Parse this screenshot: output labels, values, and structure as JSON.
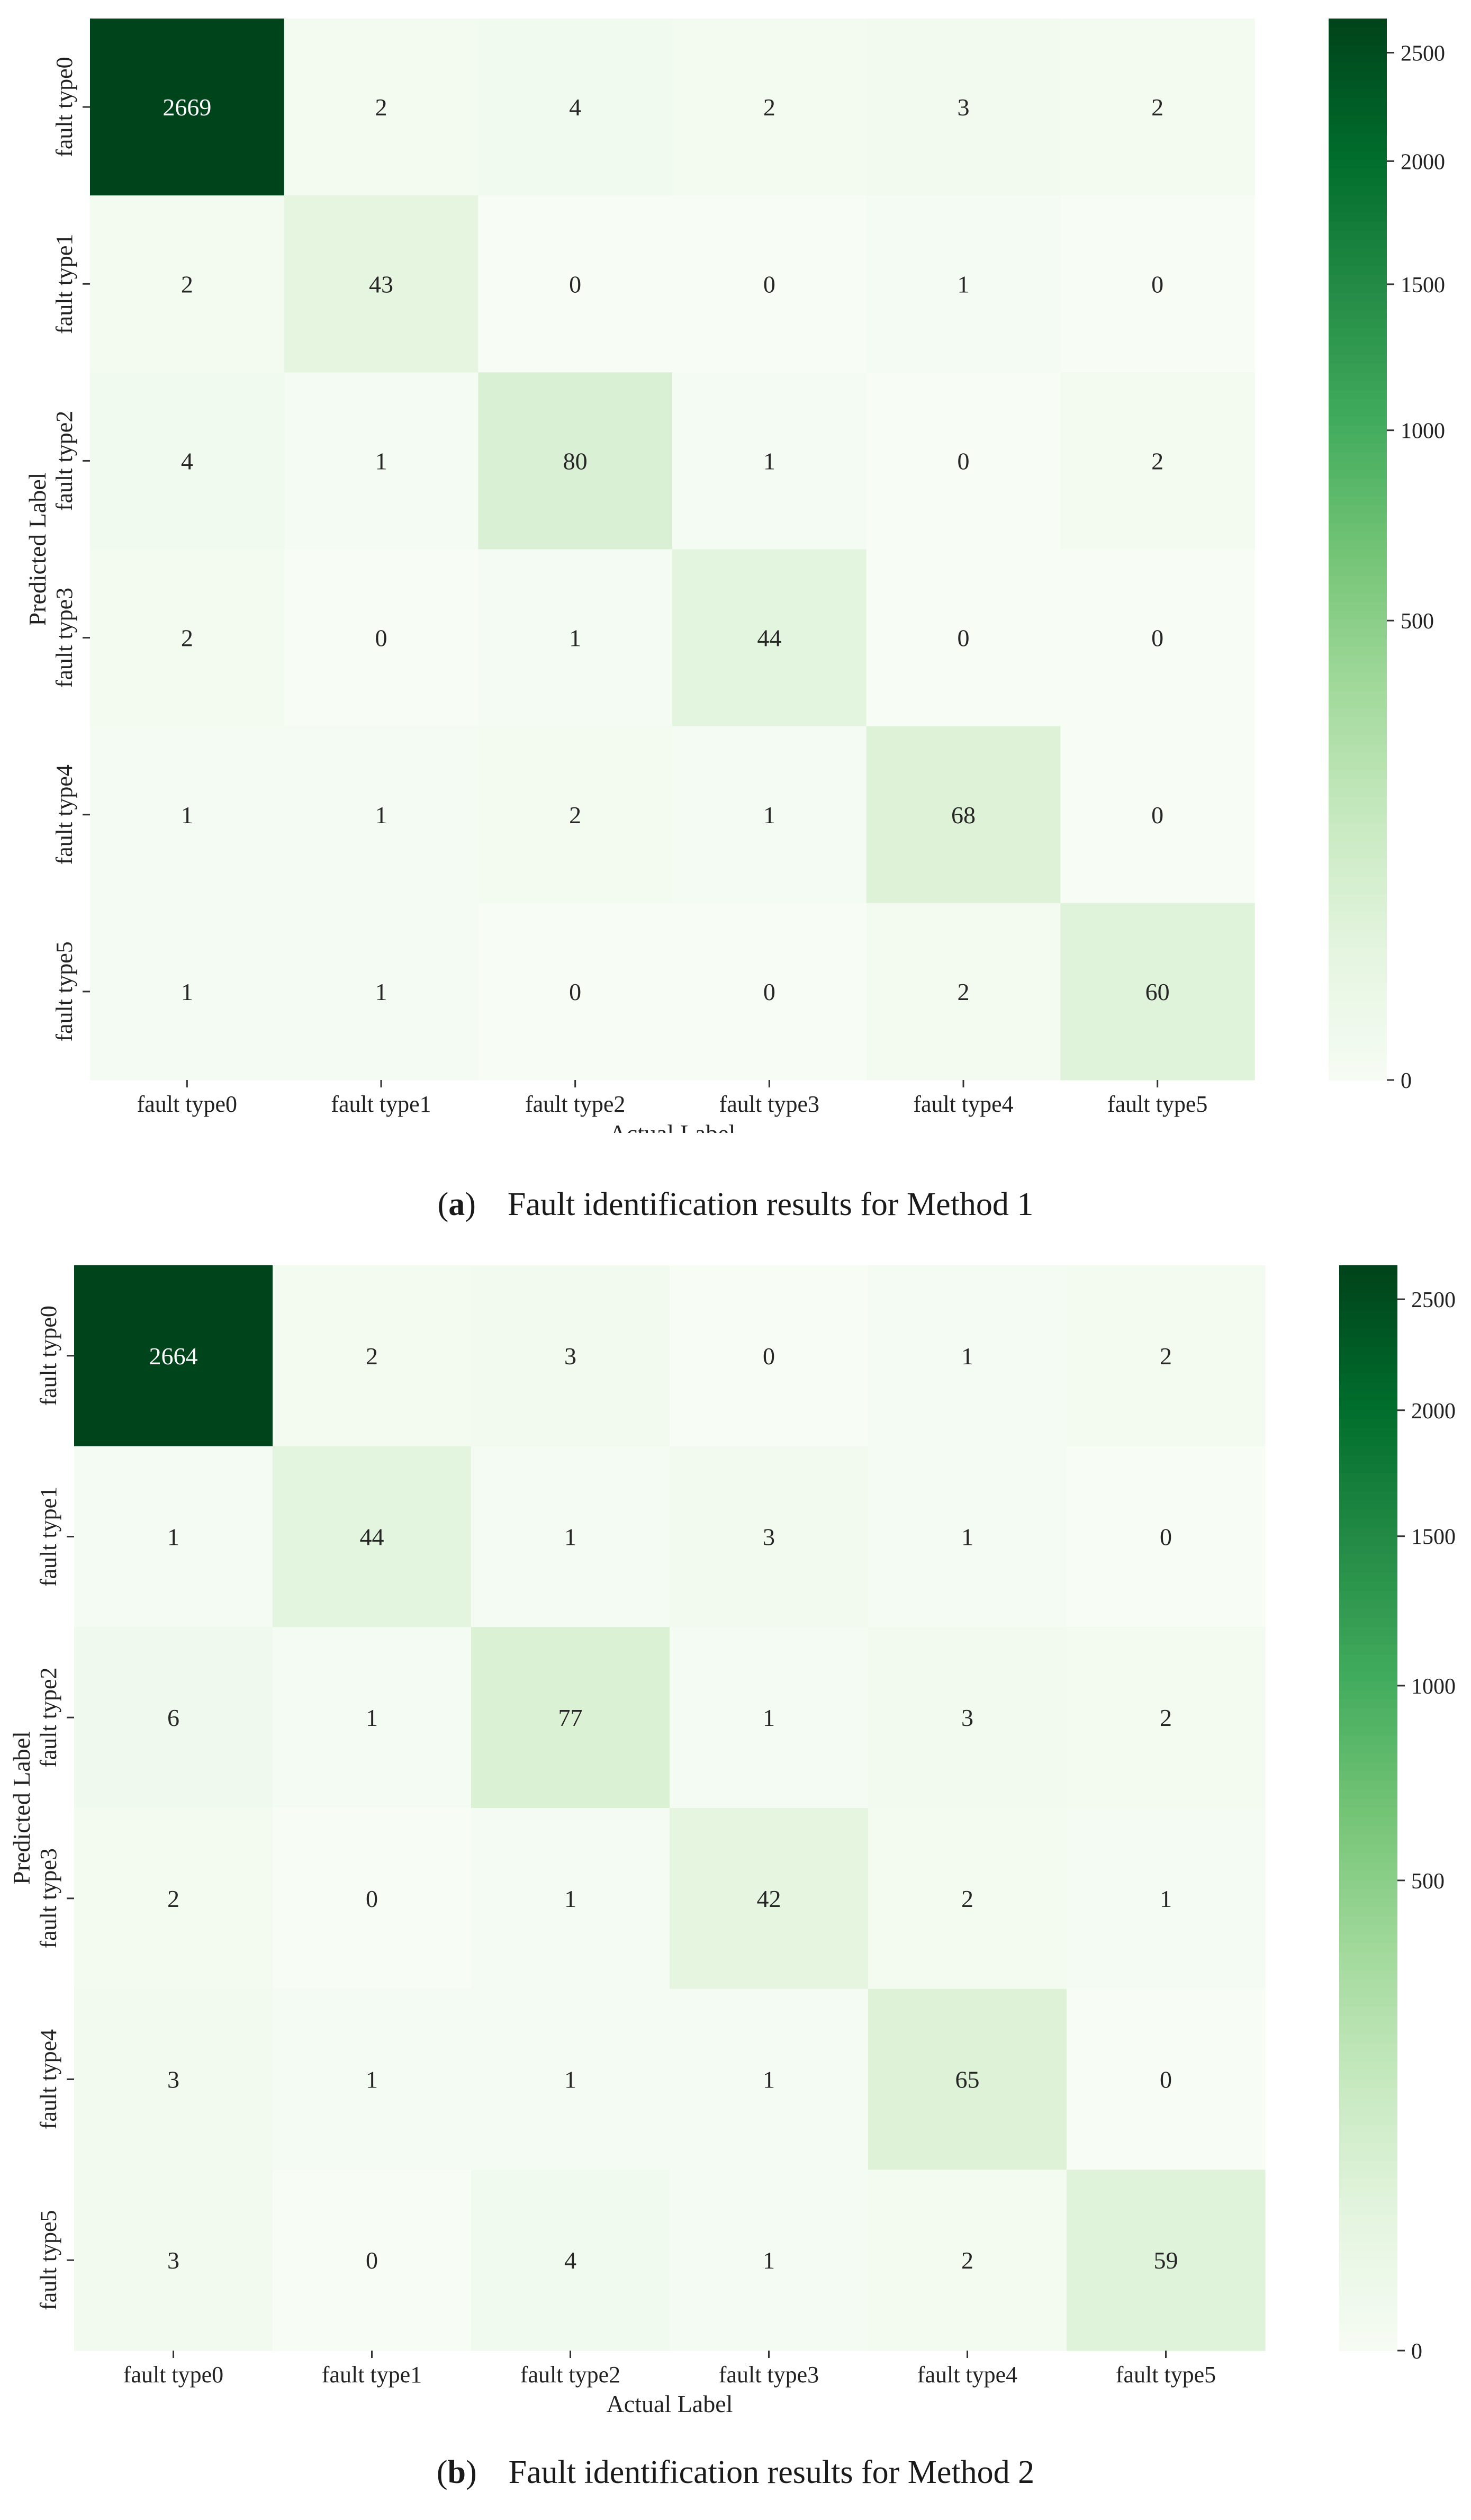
{
  "colorbar_ticks": [
    0,
    500,
    1000,
    1500,
    2000,
    2500
  ],
  "colormap": [
    "#f7fcf5",
    "#e5f5e0",
    "#c7e9c0",
    "#a1d99b",
    "#74c476",
    "#41ab5d",
    "#238b45",
    "#006d2c",
    "#00441b"
  ],
  "chart_data": [
    {
      "type": "heatmap",
      "panel": "a",
      "caption_label": "a",
      "caption_text": "Fault identification results for Method 1",
      "xlabel": "Actual Label",
      "ylabel": "Predicted Label",
      "x_categories": [
        "fault type0",
        "fault type1",
        "fault type2",
        "fault type3",
        "fault type4",
        "fault type5"
      ],
      "y_categories": [
        "fault type0",
        "fault type1",
        "fault type2",
        "fault type3",
        "fault type4",
        "fault type5"
      ],
      "values": [
        [
          2669,
          2,
          4,
          2,
          3,
          2
        ],
        [
          2,
          43,
          0,
          0,
          1,
          0
        ],
        [
          4,
          1,
          80,
          1,
          0,
          2
        ],
        [
          2,
          0,
          1,
          44,
          0,
          0
        ],
        [
          1,
          1,
          2,
          1,
          68,
          0
        ],
        [
          1,
          1,
          0,
          0,
          2,
          60
        ]
      ],
      "colorbar": {
        "min": 0,
        "max": 2669,
        "ticks": [
          0,
          500,
          1000,
          1500,
          2000,
          2500
        ]
      }
    },
    {
      "type": "heatmap",
      "panel": "b",
      "caption_label": "b",
      "caption_text": "Fault identification results for Method 2",
      "xlabel": "Actual Label",
      "ylabel": "Predicted Label",
      "x_categories": [
        "fault type0",
        "fault type1",
        "fault type2",
        "fault type3",
        "fault type4",
        "fault type5"
      ],
      "y_categories": [
        "fault type0",
        "fault type1",
        "fault type2",
        "fault type3",
        "fault type4",
        "fault type5"
      ],
      "values": [
        [
          2664,
          2,
          3,
          0,
          1,
          2
        ],
        [
          1,
          44,
          1,
          3,
          1,
          0
        ],
        [
          6,
          1,
          77,
          1,
          3,
          2
        ],
        [
          2,
          0,
          1,
          42,
          2,
          1
        ],
        [
          3,
          1,
          1,
          1,
          65,
          0
        ],
        [
          3,
          0,
          4,
          1,
          2,
          59
        ]
      ],
      "colorbar": {
        "min": 0,
        "max": 2664,
        "ticks": [
          0,
          500,
          1000,
          1500,
          2000,
          2500
        ]
      }
    }
  ]
}
